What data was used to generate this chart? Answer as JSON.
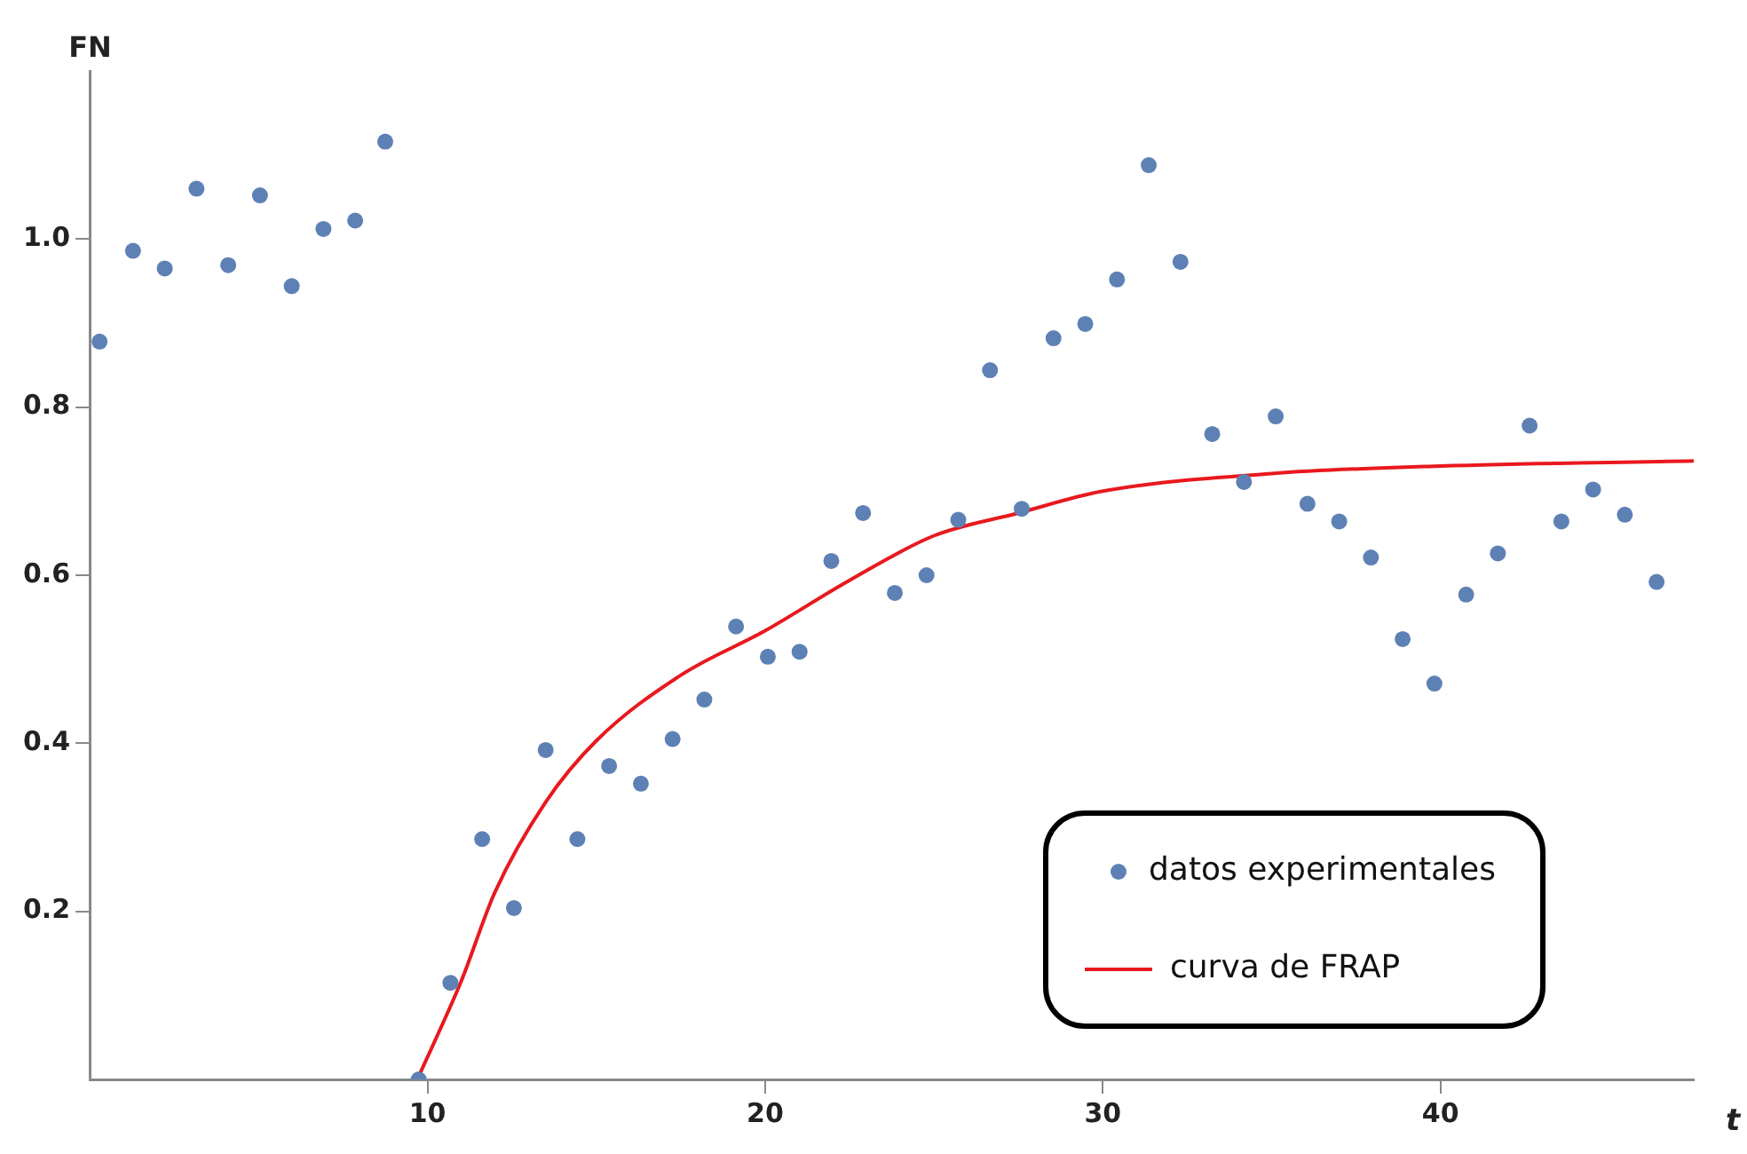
{
  "chart_data": {
    "type": "scatter",
    "xlabel": "t",
    "ylabel": "FN",
    "xlim": [
      0,
      47.5
    ],
    "ylim": [
      0,
      1.2
    ],
    "xticks": [
      10,
      20,
      30,
      40
    ],
    "yticks": [
      0.2,
      0.4,
      0.6,
      0.8,
      {
        "value": 1,
        "label": "1.0"
      }
    ],
    "grid": false,
    "legend": "bottom right",
    "series": [
      {
        "name": "datos experimentales",
        "color": "#5e81b5",
        "marker": "circle",
        "x": [
          0.29,
          1.28,
          2.22,
          3.16,
          4.1,
          5.04,
          5.98,
          6.92,
          7.86,
          8.75,
          9.74,
          10.68,
          11.62,
          12.56,
          13.5,
          14.44,
          15.38,
          16.32,
          17.26,
          18.2,
          19.14,
          20.08,
          21.02,
          21.96,
          22.9,
          23.84,
          24.78,
          25.72,
          26.66,
          27.6,
          28.54,
          29.48,
          30.42,
          31.36,
          32.3,
          33.24,
          34.18,
          35.12,
          36.06,
          37.0,
          37.94,
          38.88,
          39.82,
          40.76,
          41.7,
          42.64,
          43.58,
          44.52,
          45.46,
          46.4
        ],
        "values": [
          0.878,
          0.986,
          0.965,
          1.06,
          0.969,
          1.052,
          0.944,
          1.012,
          1.022,
          1.116,
          0.0,
          0.115,
          0.286,
          0.204,
          0.392,
          0.286,
          0.373,
          0.352,
          0.405,
          0.452,
          0.539,
          0.503,
          0.509,
          0.617,
          0.674,
          0.579,
          0.6,
          0.666,
          0.844,
          0.679,
          0.882,
          0.899,
          0.952,
          1.088,
          0.973,
          0.768,
          0.711,
          0.789,
          0.685,
          0.664,
          0.621,
          0.524,
          0.471,
          0.577,
          0.626,
          0.778,
          0.664,
          0.702,
          0.672,
          0.592
        ]
      },
      {
        "name": "curva de FRAP",
        "type": "line",
        "color": "#e8191e",
        "marker": "none",
        "line_style": "solid",
        "x": [
          9.7,
          11,
          12,
          13.5,
          15,
          17.5,
          20,
          22.5,
          25,
          27.5,
          30,
          35,
          40,
          47.5
        ],
        "values": [
          0,
          0.117,
          0.223,
          0.33,
          0.403,
          0.481,
          0.534,
          0.594,
          0.647,
          0.674,
          0.7,
          0.721,
          0.73,
          0.736
        ]
      }
    ]
  }
}
